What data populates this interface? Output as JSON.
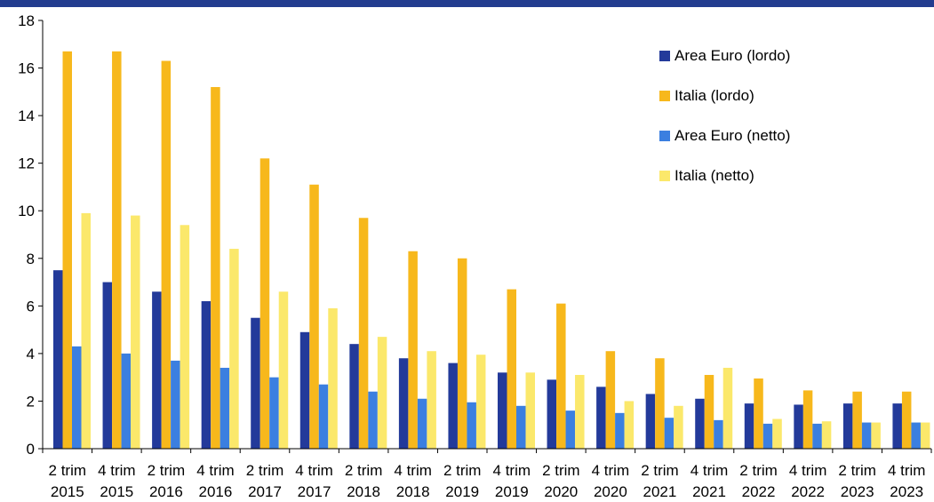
{
  "colors": {
    "header_bar": "#233c8f",
    "area_euro_lordo": "#233a9a",
    "italia_lordo": "#f7b81c",
    "area_euro_netto": "#3b7fe0",
    "italia_netto": "#fbe86b"
  },
  "chart_data": {
    "type": "bar",
    "title": "",
    "xlabel": "",
    "ylabel": "",
    "ylim": [
      0,
      18
    ],
    "yticks": [
      "0",
      "2",
      "4",
      "6",
      "8",
      "10",
      "12",
      "14",
      "16",
      "18"
    ],
    "grid": false,
    "legend_position": "top-right",
    "categories": [
      [
        "2 trim",
        "2015"
      ],
      [
        "4 trim",
        "2015"
      ],
      [
        "2 trim",
        "2016"
      ],
      [
        "4 trim",
        "2016"
      ],
      [
        "2 trim",
        "2017"
      ],
      [
        "4 trim",
        "2017"
      ],
      [
        "2 trim",
        "2018"
      ],
      [
        "4 trim",
        "2018"
      ],
      [
        "2 trim",
        "2019"
      ],
      [
        "4 trim",
        "2019"
      ],
      [
        "2 trim",
        "2020"
      ],
      [
        "4 trim",
        "2020"
      ],
      [
        "2 trim",
        "2021"
      ],
      [
        "4 trim",
        "2021"
      ],
      [
        "2 trim",
        "2022"
      ],
      [
        "4 trim",
        "2022"
      ],
      [
        "2 trim",
        "2023"
      ],
      [
        "4 trim",
        "2023"
      ]
    ],
    "series": [
      {
        "name": "Area Euro (lordo)",
        "color": "#233a9a",
        "values": [
          7.5,
          7.0,
          6.6,
          6.2,
          5.5,
          4.9,
          4.4,
          3.8,
          3.6,
          3.2,
          2.9,
          2.6,
          2.3,
          2.1,
          1.9,
          1.85,
          1.9,
          1.9
        ]
      },
      {
        "name": "Italia (lordo)",
        "color": "#f7b81c",
        "values": [
          16.7,
          16.7,
          16.3,
          15.2,
          12.2,
          11.1,
          9.7,
          8.3,
          8.0,
          6.7,
          6.1,
          4.1,
          3.8,
          3.1,
          2.95,
          2.45,
          2.4,
          2.4
        ]
      },
      {
        "name": "Area Euro (netto)",
        "color": "#3b7fe0",
        "values": [
          4.3,
          4.0,
          3.7,
          3.4,
          3.0,
          2.7,
          2.4,
          2.1,
          1.95,
          1.8,
          1.6,
          1.5,
          1.3,
          1.2,
          1.05,
          1.05,
          1.1,
          1.1
        ]
      },
      {
        "name": "Italia (netto)",
        "color": "#fbe86b",
        "values": [
          9.9,
          9.8,
          9.4,
          8.4,
          6.6,
          5.9,
          4.7,
          4.1,
          3.95,
          3.2,
          3.1,
          2.0,
          1.8,
          3.4,
          1.25,
          1.15,
          1.1,
          1.1
        ]
      }
    ]
  }
}
